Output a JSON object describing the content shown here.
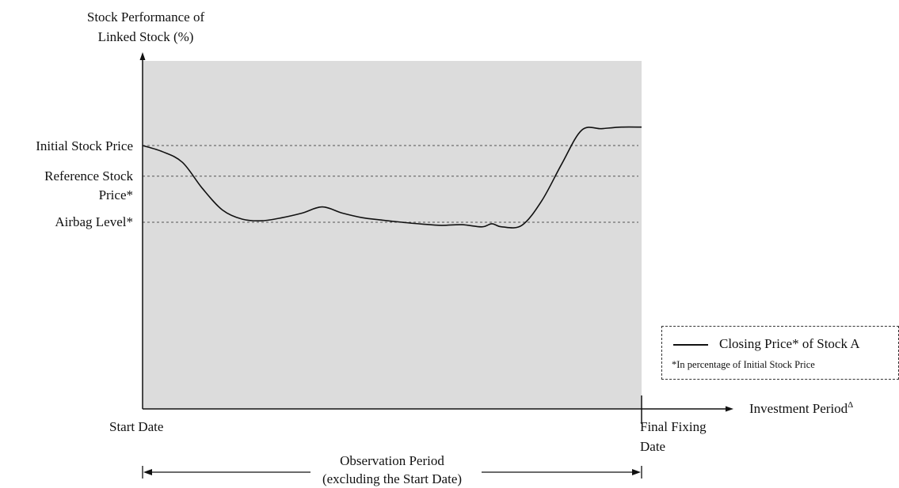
{
  "chart_data": {
    "type": "line",
    "y_axis_title_line1": "Stock Performance of",
    "y_axis_title_line2": "Linked Stock (%)",
    "x_axis_title": "Investment Period",
    "x_axis_title_superscript": "Δ",
    "levels": [
      {
        "label": "Initial Stock Price",
        "value": 100
      },
      {
        "label_line1": "Reference Stock",
        "label_line2": "Price*",
        "value": 90
      },
      {
        "label": "Airbag Level*",
        "value": 75
      }
    ],
    "x_tick_labels": {
      "start": "Start Date",
      "end_line1": "Final Fixing",
      "end_line2": "Date"
    },
    "observation_period": {
      "line1": "Observation Period",
      "line2": "(excluding the Start Date)"
    },
    "series": [
      {
        "name": "Closing Price* of Stock A",
        "x": [
          0,
          0.04,
          0.08,
          0.12,
          0.16,
          0.2,
          0.24,
          0.28,
          0.32,
          0.36,
          0.4,
          0.44,
          0.48,
          0.52,
          0.56,
          0.6,
          0.64,
          0.68,
          0.7,
          0.72,
          0.76,
          0.8,
          0.84,
          0.88,
          0.92,
          0.96,
          1.0
        ],
        "values": [
          100,
          98,
          94.5,
          86,
          79,
          76,
          75.5,
          76.5,
          78,
          80,
          78,
          76.5,
          75.7,
          75,
          74.4,
          74,
          74.2,
          73.5,
          74.5,
          73.5,
          74,
          82,
          94,
          105,
          105.5,
          106,
          106
        ]
      }
    ],
    "legend": {
      "label": "Closing Price* of Stock A",
      "note": "*In percentage of Initial Stock Price",
      "position": "right"
    },
    "colors": {
      "plot_background": "#dcdcdc",
      "line": "#111111",
      "level_line": "#555555"
    }
  }
}
